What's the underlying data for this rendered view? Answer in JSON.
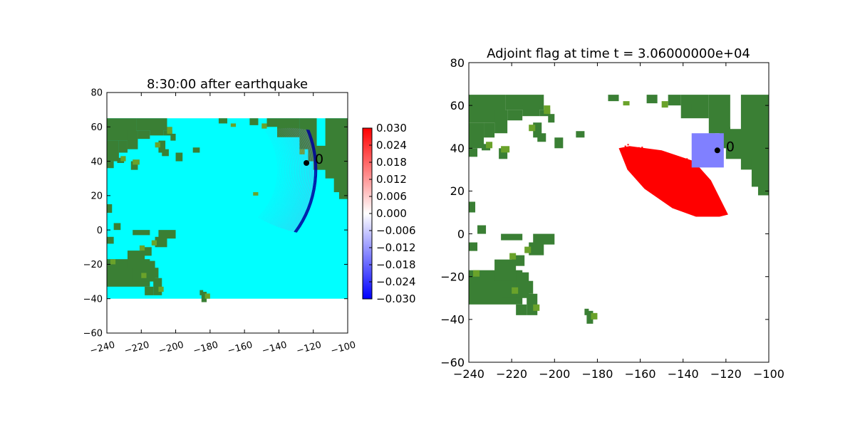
{
  "chart_data": [
    {
      "type": "heatmap",
      "title": "8:30:00 after earthquake",
      "xlim": [
        -240,
        -100
      ],
      "ylim": [
        -60,
        80
      ],
      "xticks": [
        -240,
        -220,
        -200,
        -180,
        -160,
        -140,
        -120,
        -100
      ],
      "yticks": [
        -60,
        -40,
        -20,
        0,
        20,
        40,
        60,
        80
      ],
      "xtick_labels": [
        "−240",
        "−220",
        "−200",
        "−180",
        "−160",
        "−140",
        "−120",
        "−100"
      ],
      "ytick_labels": [
        "−60",
        "−40",
        "−20",
        "0",
        "20",
        "40",
        "60",
        "80"
      ],
      "domain_bounds": {
        "x": [
          -240,
          -100
        ],
        "y": [
          -40,
          65
        ]
      },
      "background_value": 0.0,
      "colors": {
        "water": "#00ffff",
        "land": "#3a7f34",
        "land_light": "#6aa22a",
        "wave_dark": "#0000a0",
        "wave_light": "#8888dd"
      },
      "gauge": {
        "label": "0",
        "x": -124,
        "y": 39
      },
      "wavefront": {
        "center": [
          -180,
          35
        ],
        "radius_deg": 62,
        "arc_from_deg": -36,
        "arc_to_deg": 22
      },
      "colorbar": {
        "colormap": "bwr",
        "vmin": -0.03,
        "vmax": 0.03,
        "tick_values": [
          0.03,
          0.024,
          0.018,
          0.012,
          0.006,
          0.0,
          -0.006,
          -0.012,
          -0.018,
          -0.024,
          -0.03
        ],
        "tick_labels": [
          "0.030",
          "0.024",
          "0.018",
          "0.012",
          "0.006",
          "0.000",
          "−0.006",
          "−0.012",
          "−0.018",
          "−0.024",
          "−0.030"
        ]
      },
      "grid": false
    },
    {
      "type": "heatmap",
      "title": "Adjoint flag at time t = 3.06000000e+04",
      "xlim": [
        -240,
        -100
      ],
      "ylim": [
        -60,
        80
      ],
      "xticks": [
        -240,
        -220,
        -200,
        -180,
        -160,
        -140,
        -120,
        -100
      ],
      "yticks": [
        -60,
        -40,
        -20,
        0,
        20,
        40,
        60,
        80
      ],
      "xtick_labels": [
        "−240",
        "−220",
        "−200",
        "−180",
        "−160",
        "−140",
        "−120",
        "−100"
      ],
      "ytick_labels": [
        "−60",
        "−40",
        "−20",
        "0",
        "20",
        "40",
        "60",
        "80"
      ],
      "domain_bounds": {
        "x": [
          -240,
          -100
        ],
        "y": [
          -40,
          65
        ]
      },
      "colors": {
        "background": "#ffffff",
        "land": "#3a7f34",
        "land_light": "#6aa22a",
        "flag": "#ff0000",
        "region": "#8080ff"
      },
      "flag_region_polygon": [
        [
          -165,
          41
        ],
        [
          -150,
          39
        ],
        [
          -135,
          34
        ],
        [
          -127,
          25
        ],
        [
          -119,
          9
        ],
        [
          -123,
          8
        ],
        [
          -134,
          8
        ],
        [
          -145,
          12
        ],
        [
          -158,
          21
        ],
        [
          -166,
          30
        ],
        [
          -170,
          40
        ]
      ],
      "gauge_region": {
        "x": [
          -136,
          -121
        ],
        "y": [
          31,
          47
        ]
      },
      "gauge": {
        "label": "0",
        "x": -124,
        "y": 39
      },
      "grid": false
    }
  ]
}
